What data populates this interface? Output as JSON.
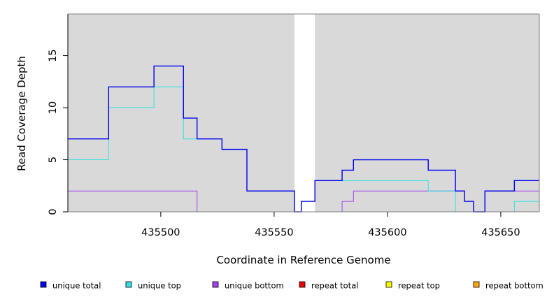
{
  "chart_data": {
    "type": "line",
    "style": "step",
    "xlabel": "Coordinate in Reference Genome",
    "ylabel": "Read Coverage Depth",
    "xlim": [
      435459,
      435667
    ],
    "ylim": [
      0,
      19
    ],
    "xticks": [
      435500,
      435550,
      435600,
      435650
    ],
    "yticks": [
      0,
      5,
      10,
      15
    ],
    "background": "#d9d9d9",
    "gap_region": {
      "x0": 435559,
      "x1": 435568,
      "color": "#ffffff"
    },
    "legend_position": "bottom",
    "series": [
      {
        "name": "unique total",
        "color": "#0000ee",
        "points": [
          [
            435459,
            7
          ],
          [
            435477,
            12
          ],
          [
            435497,
            14
          ],
          [
            435510,
            9
          ],
          [
            435516,
            7
          ],
          [
            435527,
            6
          ],
          [
            435538,
            2
          ],
          [
            435559,
            0
          ],
          [
            435562,
            1
          ],
          [
            435568,
            3
          ],
          [
            435580,
            4
          ],
          [
            435585,
            5
          ],
          [
            435618,
            4
          ],
          [
            435630,
            2
          ],
          [
            435634,
            1
          ],
          [
            435638,
            0
          ],
          [
            435643,
            2
          ],
          [
            435656,
            3
          ],
          [
            435667,
            3
          ]
        ]
      },
      {
        "name": "unique top",
        "color": "#33e0e0",
        "points": [
          [
            435459,
            5
          ],
          [
            435477,
            10
          ],
          [
            435497,
            12
          ],
          [
            435510,
            7
          ],
          [
            435516,
            7
          ],
          [
            435527,
            6
          ],
          [
            435538,
            2
          ],
          [
            435559,
            0
          ],
          [
            435562,
            1
          ],
          [
            435568,
            3
          ],
          [
            435618,
            2
          ],
          [
            435630,
            0
          ],
          [
            435656,
            1
          ],
          [
            435667,
            1
          ]
        ]
      },
      {
        "name": "unique bottom",
        "color": "#a040f0",
        "points": [
          [
            435459,
            2
          ],
          [
            435516,
            0
          ],
          [
            435580,
            1
          ],
          [
            435585,
            2
          ],
          [
            435630,
            2
          ],
          [
            435634,
            1
          ],
          [
            435638,
            0
          ],
          [
            435643,
            2
          ],
          [
            435667,
            2
          ]
        ]
      },
      {
        "name": "repeat total",
        "color": "#ee0000",
        "points": [
          [
            435459,
            0
          ],
          [
            435667,
            0
          ]
        ]
      },
      {
        "name": "repeat top",
        "color": "#ffff00",
        "points": [
          [
            435459,
            0
          ],
          [
            435667,
            0
          ]
        ]
      },
      {
        "name": "repeat bottom",
        "color": "#ffa500",
        "points": [
          [
            435459,
            0
          ],
          [
            435667,
            0
          ]
        ]
      }
    ]
  }
}
